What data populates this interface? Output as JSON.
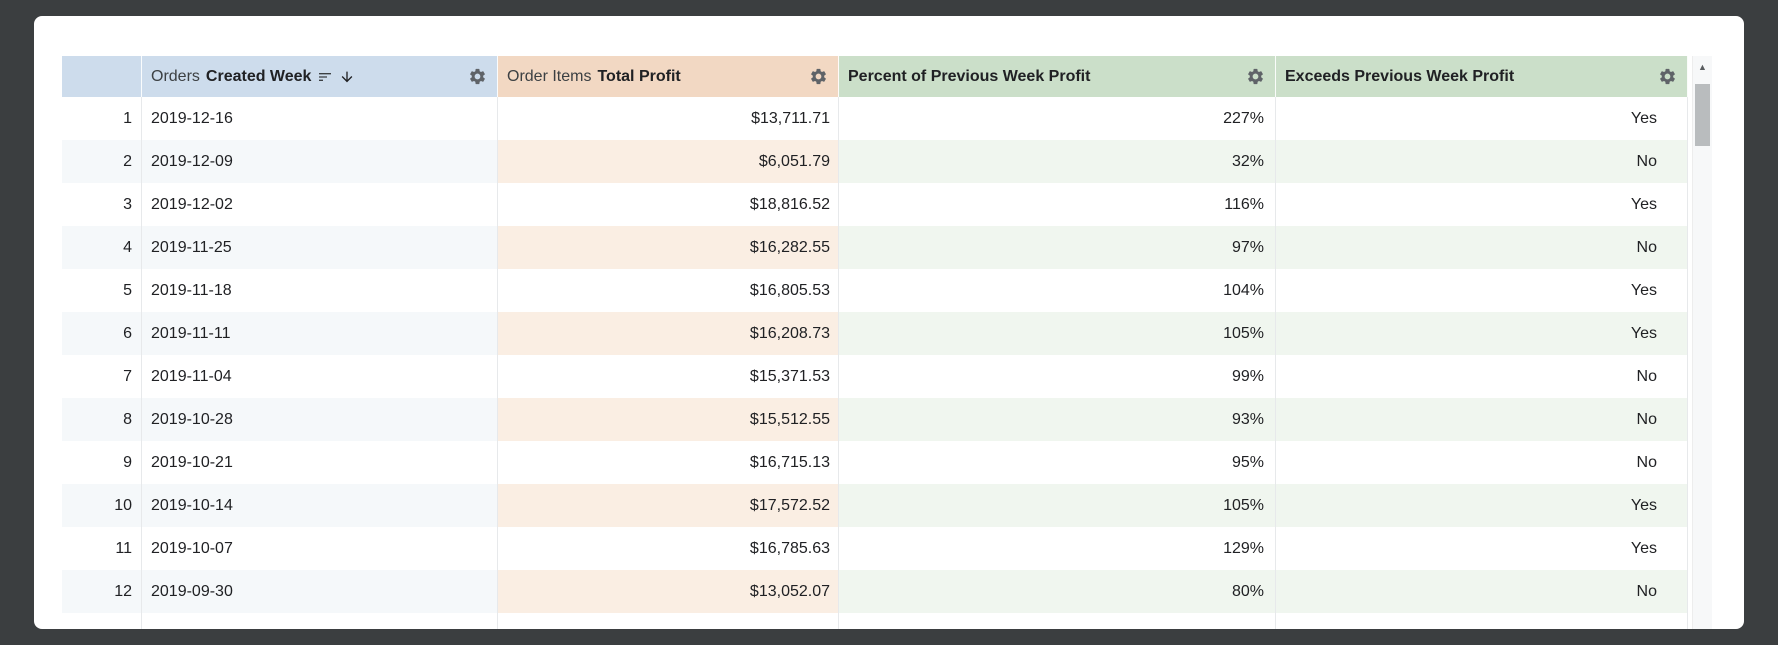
{
  "colors": {
    "frame_background": "#3b3e40",
    "card_background": "#ffffff",
    "header_week": "#cddcec",
    "header_profit": "#f2d8c3",
    "header_percent": "#cbdfc9",
    "header_exceeds": "#cbdfc9",
    "alt_row_neutral": "#f5f8fa",
    "alt_row_profit": "#faeee3",
    "alt_row_green": "#f0f6ef",
    "cell_border": "#e7e9eb",
    "text": "#202124",
    "icon": "#5f6368"
  },
  "icons": {
    "gear": "settings-gear",
    "sort": "sort-lines",
    "sort_direction": "arrow-down",
    "scrollbar_up": "triangle-up"
  },
  "table": {
    "header": {
      "row_number_label": "",
      "columns": [
        {
          "view": "Orders",
          "field": "Created Week",
          "sorted_descending": true
        },
        {
          "view": "Order Items",
          "field": "Total Profit",
          "sorted_descending": false
        },
        {
          "view": "",
          "field": "Percent of Previous Week Profit",
          "sorted_descending": false
        },
        {
          "view": "",
          "field": "Exceeds Previous Week Profit",
          "sorted_descending": false
        }
      ]
    },
    "rows": [
      {
        "num": "1",
        "week": "2019-12-16",
        "profit": "$13,711.71",
        "percent": "227%",
        "exceeds": "Yes"
      },
      {
        "num": "2",
        "week": "2019-12-09",
        "profit": "$6,051.79",
        "percent": "32%",
        "exceeds": "No"
      },
      {
        "num": "3",
        "week": "2019-12-02",
        "profit": "$18,816.52",
        "percent": "116%",
        "exceeds": "Yes"
      },
      {
        "num": "4",
        "week": "2019-11-25",
        "profit": "$16,282.55",
        "percent": "97%",
        "exceeds": "No"
      },
      {
        "num": "5",
        "week": "2019-11-18",
        "profit": "$16,805.53",
        "percent": "104%",
        "exceeds": "Yes"
      },
      {
        "num": "6",
        "week": "2019-11-11",
        "profit": "$16,208.73",
        "percent": "105%",
        "exceeds": "Yes"
      },
      {
        "num": "7",
        "week": "2019-11-04",
        "profit": "$15,371.53",
        "percent": "99%",
        "exceeds": "No"
      },
      {
        "num": "8",
        "week": "2019-10-28",
        "profit": "$15,512.55",
        "percent": "93%",
        "exceeds": "No"
      },
      {
        "num": "9",
        "week": "2019-10-21",
        "profit": "$16,715.13",
        "percent": "95%",
        "exceeds": "No"
      },
      {
        "num": "10",
        "week": "2019-10-14",
        "profit": "$17,572.52",
        "percent": "105%",
        "exceeds": "Yes"
      },
      {
        "num": "11",
        "week": "2019-10-07",
        "profit": "$16,785.63",
        "percent": "129%",
        "exceeds": "Yes"
      },
      {
        "num": "12",
        "week": "2019-09-30",
        "profit": "$13,052.07",
        "percent": "80%",
        "exceeds": "No"
      }
    ]
  },
  "scrollbar": {
    "up_arrow": "▲"
  }
}
